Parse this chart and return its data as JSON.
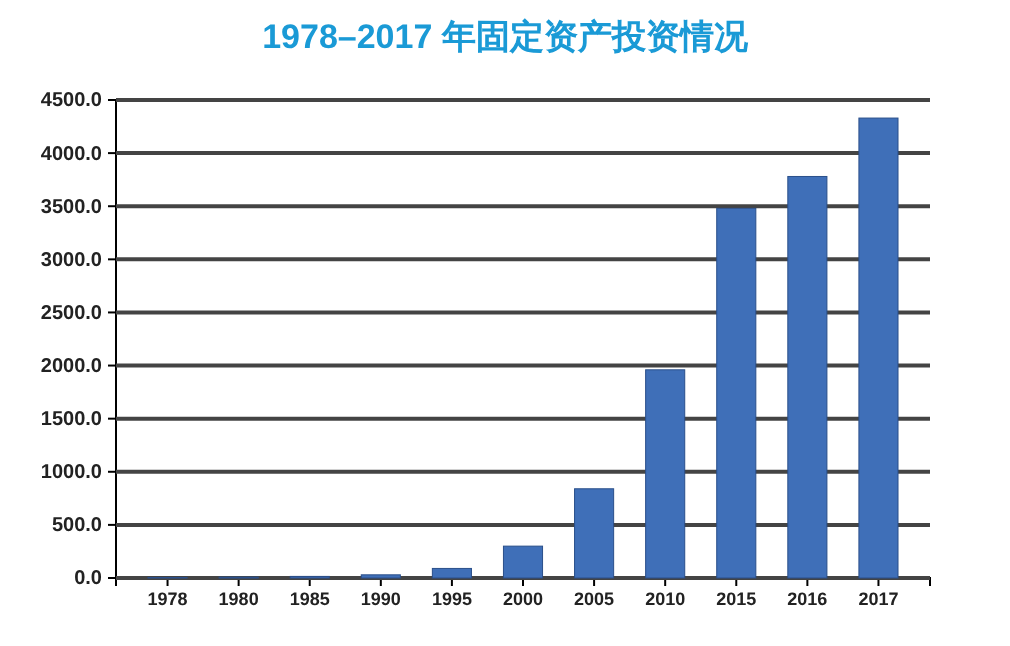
{
  "chart_data": {
    "type": "bar",
    "title": "1978–2017 年固定资产投资情况",
    "categories": [
      "1978",
      "1980",
      "1985",
      "1990",
      "1995",
      "2000",
      "2005",
      "2010",
      "2015",
      "2016",
      "2017"
    ],
    "values": [
      5,
      8,
      15,
      30,
      90,
      300,
      840,
      1960,
      3480,
      3780,
      4330
    ],
    "color": "#3f6fb8",
    "ylim": [
      0,
      4500
    ],
    "yticks": [
      {
        "value": 0,
        "label": "0.0"
      },
      {
        "value": 500,
        "label": "500.0"
      },
      {
        "value": 1000,
        "label": "1000.0"
      },
      {
        "value": 1500,
        "label": "1500.0"
      },
      {
        "value": 2000,
        "label": "2000.0"
      },
      {
        "value": 2500,
        "label": "2500.0"
      },
      {
        "value": 3000,
        "label": "3000.0"
      },
      {
        "value": 3500,
        "label": "3500.0"
      },
      {
        "value": 4000,
        "label": "4000.0"
      },
      {
        "value": 4500,
        "label": "4500.0"
      }
    ],
    "grid": "y"
  }
}
